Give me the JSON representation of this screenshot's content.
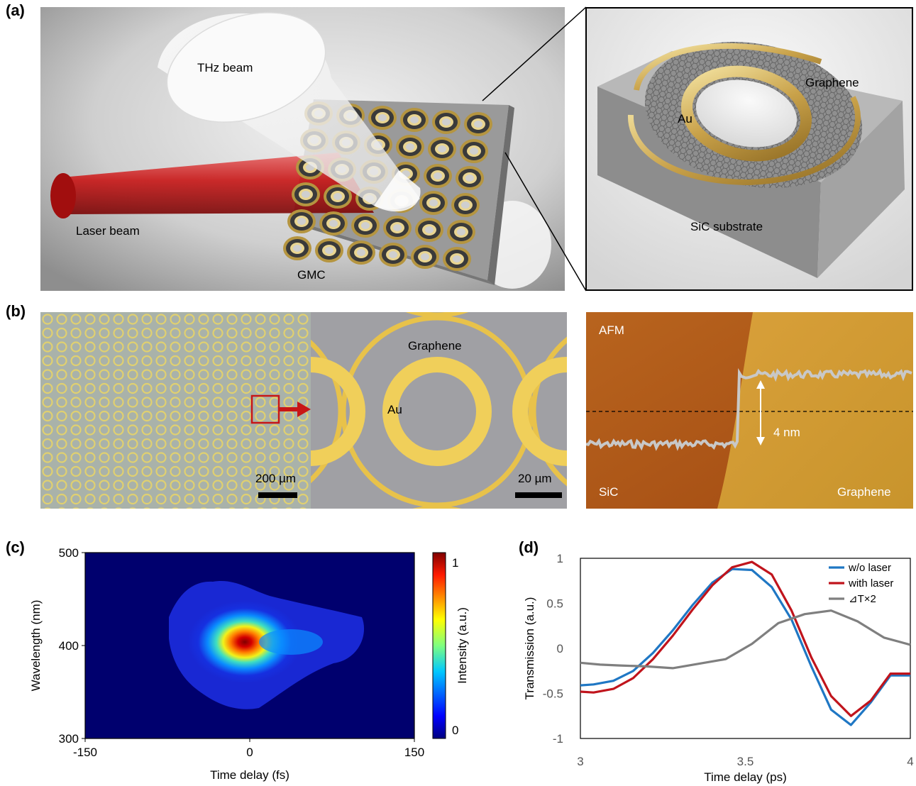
{
  "panel_labels": {
    "a": "(a)",
    "b": "(b)",
    "c": "(c)",
    "d": "(d)"
  },
  "panel_a": {
    "thz_beam": "THz beam",
    "laser_beam": "Laser beam",
    "gmc": "GMC",
    "inset_graphene": "Graphene",
    "inset_au": "Au",
    "inset_substrate": "SiC substrate"
  },
  "panel_b": {
    "scale_left": "200 µm",
    "zoom_graphene": "Graphene",
    "zoom_au": "Au",
    "scale_zoom": "20 µm",
    "afm_title": "AFM",
    "afm_step": "4 nm",
    "afm_sic": "SiC",
    "afm_graphene": "Graphene"
  },
  "chart_data": [
    {
      "type": "heatmap",
      "panel": "(c)",
      "xlabel": "Time delay (fs)",
      "ylabel": "Wavelength (nm)",
      "x_ticks": [
        "-150",
        "0",
        "150"
      ],
      "y_ticks": [
        "300",
        "400",
        "500"
      ],
      "xlim": [
        -150,
        150
      ],
      "ylim": [
        300,
        500
      ],
      "colorbar_label": "Intensity (a.u.)",
      "colorbar_ticks": [
        "0",
        "1"
      ],
      "colorbar_range": [
        0,
        1
      ],
      "peak": {
        "x": 0,
        "y": 402,
        "value": 1
      }
    },
    {
      "type": "line",
      "panel": "(d)",
      "xlabel": "Time delay (ps)",
      "ylabel": "Transmission (a.u.)",
      "x_ticks": [
        "3",
        "3.5",
        "4"
      ],
      "y_ticks": [
        "-1",
        "-0.5",
        "0",
        "0.5",
        "1"
      ],
      "xlim": [
        3,
        4
      ],
      "ylim": [
        -1,
        1
      ],
      "legend_position": "top-right",
      "series": [
        {
          "name": "w/o laser",
          "color": "#1f77c4",
          "x": [
            3.0,
            3.04,
            3.1,
            3.16,
            3.22,
            3.28,
            3.34,
            3.4,
            3.46,
            3.52,
            3.58,
            3.64,
            3.7,
            3.76,
            3.82,
            3.88,
            3.94,
            4.0
          ],
          "y": [
            -0.41,
            -0.4,
            -0.36,
            -0.25,
            -0.05,
            0.2,
            0.48,
            0.73,
            0.88,
            0.87,
            0.68,
            0.32,
            -0.2,
            -0.68,
            -0.85,
            -0.6,
            -0.3,
            -0.3
          ]
        },
        {
          "name": "with laser",
          "color": "#c0141c",
          "x": [
            3.0,
            3.04,
            3.1,
            3.16,
            3.22,
            3.28,
            3.34,
            3.4,
            3.46,
            3.52,
            3.58,
            3.64,
            3.7,
            3.76,
            3.82,
            3.88,
            3.94,
            4.0
          ],
          "y": [
            -0.48,
            -0.49,
            -0.45,
            -0.33,
            -0.12,
            0.14,
            0.43,
            0.7,
            0.9,
            0.96,
            0.82,
            0.42,
            -0.1,
            -0.53,
            -0.75,
            -0.58,
            -0.28,
            -0.28
          ]
        },
        {
          "name": "⊿T×2",
          "color": "#7f7f7f",
          "x": [
            3.0,
            3.06,
            3.12,
            3.2,
            3.28,
            3.36,
            3.44,
            3.52,
            3.6,
            3.68,
            3.76,
            3.84,
            3.92,
            4.0
          ],
          "y": [
            -0.16,
            -0.18,
            -0.19,
            -0.2,
            -0.22,
            -0.17,
            -0.12,
            0.05,
            0.28,
            0.38,
            0.42,
            0.3,
            0.12,
            0.04
          ]
        }
      ]
    }
  ]
}
